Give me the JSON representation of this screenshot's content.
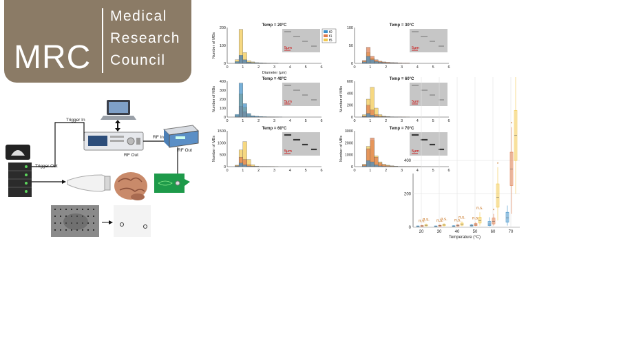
{
  "logo": {
    "initials": "MRC",
    "line1": "Medical",
    "line2": "Research",
    "line3": "Council",
    "bg": "#8b7b66"
  },
  "diagram": {
    "trigger_in": "Trigger In",
    "trigger_out": "Trigger Out",
    "rf_in": "RF In",
    "rf_out_generator": "RF Out",
    "rf_out_amp": "RF Out"
  },
  "histograms": {
    "xlabel": "Diameter (μm)",
    "x_ticks": [
      "0",
      "1",
      "2",
      "3",
      "4",
      "5",
      "6"
    ],
    "scale_label": "5μm",
    "legend": [
      "t0",
      "t1",
      "t5"
    ],
    "colors": {
      "t0": "#3d8fc8",
      "t1": "#e07a4a",
      "t5": "#f2c84b"
    },
    "panels": [
      {
        "title": "Temp = 20°C",
        "ylabel": "Number of MBs",
        "y_ticks": [
          "0",
          "100",
          "200"
        ],
        "ymax": 200,
        "t0": [
          0,
          0,
          10,
          45,
          20,
          6,
          4,
          3,
          2,
          1,
          1,
          0,
          1,
          0,
          0,
          0,
          0,
          0,
          0,
          0,
          0,
          0,
          0,
          0
        ],
        "t1": [
          0,
          0,
          5,
          40,
          18,
          6,
          4,
          3,
          2,
          1,
          1,
          0,
          0,
          0,
          0,
          0,
          0,
          0,
          0,
          0,
          0,
          0,
          0,
          0
        ],
        "t5": [
          0,
          0,
          20,
          190,
          60,
          15,
          8,
          4,
          3,
          2,
          1,
          1,
          0,
          0,
          0,
          0,
          0,
          0,
          0,
          0,
          0,
          0,
          0,
          0
        ]
      },
      {
        "title": "Temp = 30°C",
        "ylabel": "",
        "y_ticks": [
          "0",
          "50",
          "100"
        ],
        "ymax": 100,
        "t0": [
          0,
          0,
          4,
          20,
          10,
          5,
          3,
          2,
          1,
          1,
          1,
          0,
          0,
          0,
          0,
          0,
          0,
          0,
          0,
          0,
          0,
          0,
          0,
          0
        ],
        "t1": [
          0,
          0,
          8,
          45,
          20,
          10,
          6,
          4,
          3,
          2,
          2,
          1,
          1,
          1,
          0,
          0,
          0,
          0,
          0,
          0,
          0,
          0,
          0,
          0
        ],
        "t5": [
          0,
          0,
          6,
          30,
          15,
          8,
          5,
          3,
          2,
          2,
          1,
          1,
          0,
          0,
          0,
          0,
          0,
          0,
          0,
          0,
          0,
          0,
          0,
          0
        ]
      },
      {
        "title": "Temp = 40°C",
        "ylabel": "Number of MBs",
        "y_ticks": [
          "0",
          "100",
          "200",
          "300",
          "400"
        ],
        "ymax": 400,
        "t0": [
          0,
          0,
          30,
          380,
          150,
          40,
          15,
          10,
          6,
          4,
          3,
          2,
          1,
          1,
          0,
          0,
          0,
          0,
          0,
          0,
          0,
          0,
          0,
          0
        ],
        "t1": [
          0,
          0,
          10,
          120,
          60,
          15,
          6,
          4,
          2,
          2,
          1,
          1,
          0,
          0,
          0,
          0,
          0,
          0,
          0,
          0,
          0,
          0,
          0,
          0
        ],
        "t5": [
          0,
          0,
          20,
          260,
          110,
          30,
          12,
          6,
          4,
          3,
          2,
          1,
          1,
          0,
          0,
          0,
          0,
          0,
          0,
          0,
          0,
          0,
          0,
          0
        ]
      },
      {
        "title": "Temp = 60°C",
        "ylabel": "Number of MBs",
        "y_ticks": [
          "0",
          "200",
          "400",
          "600"
        ],
        "ymax": 600,
        "t0": [
          0,
          0,
          10,
          60,
          30,
          10,
          5,
          3,
          2,
          1,
          1,
          0,
          0,
          0,
          0,
          0,
          0,
          0,
          0,
          0,
          0,
          0,
          0,
          0
        ],
        "t1": [
          0,
          0,
          20,
          200,
          120,
          40,
          15,
          8,
          5,
          3,
          2,
          1,
          1,
          0,
          0,
          0,
          0,
          0,
          0,
          0,
          0,
          0,
          0,
          0
        ],
        "t5": [
          0,
          0,
          40,
          300,
          500,
          150,
          40,
          15,
          8,
          5,
          3,
          2,
          1,
          1,
          0,
          0,
          0,
          0,
          0,
          0,
          0,
          0,
          0,
          0
        ]
      },
      {
        "title": "Temp = 60°C",
        "ylabel": "Number of MBs",
        "y_ticks": [
          "0",
          "500",
          "1000",
          "1500"
        ],
        "ymax": 1500,
        "t0": [
          0,
          0,
          20,
          150,
          80,
          20,
          8,
          4,
          2,
          1,
          1,
          0,
          0,
          0,
          0,
          0,
          0,
          0,
          0,
          0,
          0,
          0,
          0,
          0
        ],
        "t1": [
          0,
          0,
          40,
          400,
          300,
          80,
          20,
          8,
          4,
          2,
          1,
          1,
          0,
          0,
          0,
          0,
          0,
          0,
          0,
          0,
          0,
          0,
          0,
          0
        ],
        "t5": [
          0,
          0,
          60,
          700,
          1050,
          300,
          80,
          25,
          10,
          5,
          3,
          2,
          1,
          0,
          0,
          0,
          0,
          0,
          0,
          0,
          0,
          0,
          0,
          0
        ]
      },
      {
        "title": "Temp = 70°C",
        "ylabel": "Number of MBs",
        "y_ticks": [
          "0",
          "1000",
          "2000",
          "3000"
        ],
        "ymax": 3000,
        "t0": [
          0,
          0,
          60,
          500,
          400,
          150,
          60,
          30,
          15,
          8,
          4,
          2,
          1,
          1,
          0,
          0,
          0,
          0,
          0,
          0,
          0,
          0,
          0,
          0
        ],
        "t1": [
          0,
          0,
          150,
          1500,
          2400,
          800,
          300,
          150,
          80,
          40,
          20,
          10,
          5,
          3,
          2,
          1,
          0,
          0,
          0,
          0,
          0,
          0,
          0,
          0
        ],
        "t5": [
          0,
          0,
          200,
          1700,
          2200,
          900,
          400,
          200,
          120,
          70,
          40,
          20,
          10,
          5,
          3,
          2,
          1,
          0,
          0,
          0,
          0,
          0,
          0,
          0
        ]
      }
    ]
  },
  "boxplot": {
    "xlabel": "Temperature (°C)",
    "x_ticks": [
      "20",
      "30",
      "40",
      "50",
      "60",
      "70"
    ],
    "y_ticks": [
      "0",
      "200",
      "400"
    ],
    "ns_label": "n.s.",
    "star_label": "*",
    "groups": [
      {
        "t0": [
          2,
          4,
          6,
          8,
          10
        ],
        "t1": [
          3,
          5,
          8,
          10,
          14
        ],
        "t5": [
          4,
          8,
          12,
          16,
          22
        ]
      },
      {
        "t0": [
          2,
          4,
          6,
          8,
          10
        ],
        "t1": [
          3,
          6,
          9,
          12,
          16
        ],
        "t5": [
          4,
          9,
          13,
          18,
          24
        ]
      },
      {
        "t0": [
          3,
          5,
          7,
          9,
          12
        ],
        "t1": [
          4,
          7,
          10,
          14,
          18
        ],
        "t5": [
          6,
          12,
          18,
          25,
          35
        ]
      },
      {
        "t0": [
          4,
          7,
          10,
          14,
          20
        ],
        "t1": [
          6,
          10,
          16,
          22,
          30
        ],
        "t5": [
          10,
          25,
          40,
          60,
          90
        ]
      },
      {
        "t0": [
          5,
          10,
          20,
          35,
          60
        ],
        "t1": [
          10,
          20,
          35,
          55,
          80
        ],
        "t5": [
          40,
          120,
          180,
          260,
          360
        ]
      },
      {
        "t0": [
          10,
          30,
          55,
          90,
          130
        ],
        "t1": [
          80,
          250,
          350,
          450,
          600
        ],
        "t5": [
          200,
          400,
          550,
          700,
          900
        ]
      }
    ]
  }
}
